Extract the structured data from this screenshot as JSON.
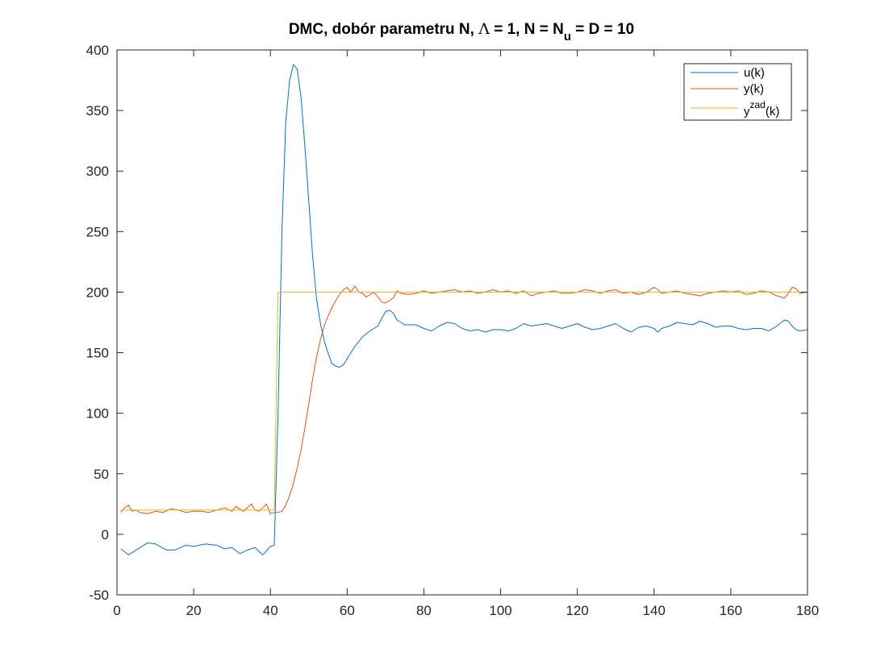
{
  "chart_data": {
    "type": "line",
    "title": {
      "prefix": "DMC, dobór parametru N, ",
      "lambda_symbol": "Λ",
      "middle": " = 1, N = N",
      "subscript": "u",
      "suffix": " = D = 10"
    },
    "xlabel": "",
    "ylabel": "",
    "xlim": [
      0,
      180
    ],
    "ylim": [
      -50,
      400
    ],
    "xticks": [
      0,
      20,
      40,
      60,
      80,
      100,
      120,
      140,
      160,
      180
    ],
    "yticks": [
      -50,
      0,
      50,
      100,
      150,
      200,
      250,
      300,
      350,
      400
    ],
    "grid": false,
    "legend_position": "top-right",
    "series": [
      {
        "name": "u(k)",
        "color": "#0072BD",
        "points": [
          [
            1,
            -12
          ],
          [
            3,
            -17
          ],
          [
            5,
            -13
          ],
          [
            8,
            -7
          ],
          [
            10,
            -8
          ],
          [
            13,
            -13
          ],
          [
            15,
            -13
          ],
          [
            18,
            -9
          ],
          [
            20,
            -10
          ],
          [
            23,
            -8
          ],
          [
            26,
            -9
          ],
          [
            28,
            -12
          ],
          [
            30,
            -11
          ],
          [
            32,
            -16
          ],
          [
            34,
            -13
          ],
          [
            36,
            -11
          ],
          [
            38,
            -17
          ],
          [
            40,
            -10
          ],
          [
            41,
            -9
          ],
          [
            42,
            100
          ],
          [
            43,
            250
          ],
          [
            44,
            340
          ],
          [
            45,
            375
          ],
          [
            46,
            388
          ],
          [
            47,
            384
          ],
          [
            48,
            360
          ],
          [
            49,
            320
          ],
          [
            50,
            275
          ],
          [
            51,
            230
          ],
          [
            52,
            195
          ],
          [
            53,
            175
          ],
          [
            54,
            160
          ],
          [
            55,
            150
          ],
          [
            56,
            141
          ],
          [
            57,
            139
          ],
          [
            58,
            138
          ],
          [
            59,
            140
          ],
          [
            60,
            145
          ],
          [
            62,
            155
          ],
          [
            64,
            163
          ],
          [
            66,
            168
          ],
          [
            68,
            172
          ],
          [
            69,
            178
          ],
          [
            70,
            184
          ],
          [
            71,
            185
          ],
          [
            72,
            183
          ],
          [
            73,
            177
          ],
          [
            75,
            173
          ],
          [
            78,
            173
          ],
          [
            80,
            170
          ],
          [
            82,
            168
          ],
          [
            84,
            172
          ],
          [
            86,
            175
          ],
          [
            88,
            174
          ],
          [
            90,
            170
          ],
          [
            92,
            168
          ],
          [
            94,
            169
          ],
          [
            96,
            167
          ],
          [
            98,
            169
          ],
          [
            100,
            169
          ],
          [
            102,
            168
          ],
          [
            104,
            170
          ],
          [
            106,
            174
          ],
          [
            108,
            172
          ],
          [
            110,
            173
          ],
          [
            112,
            174
          ],
          [
            114,
            172
          ],
          [
            116,
            170
          ],
          [
            118,
            172
          ],
          [
            120,
            174
          ],
          [
            122,
            171
          ],
          [
            124,
            169
          ],
          [
            126,
            170
          ],
          [
            128,
            172
          ],
          [
            130,
            174
          ],
          [
            132,
            170
          ],
          [
            134,
            167
          ],
          [
            136,
            171
          ],
          [
            138,
            172
          ],
          [
            140,
            170
          ],
          [
            141,
            167
          ],
          [
            142,
            170
          ],
          [
            144,
            172
          ],
          [
            146,
            175
          ],
          [
            148,
            174
          ],
          [
            150,
            173
          ],
          [
            152,
            176
          ],
          [
            154,
            174
          ],
          [
            156,
            171
          ],
          [
            158,
            172
          ],
          [
            160,
            172
          ],
          [
            162,
            170
          ],
          [
            164,
            169
          ],
          [
            166,
            170
          ],
          [
            168,
            170
          ],
          [
            170,
            168
          ],
          [
            172,
            172
          ],
          [
            174,
            177
          ],
          [
            175,
            176
          ],
          [
            176,
            172
          ],
          [
            177,
            169
          ],
          [
            178,
            168
          ],
          [
            180,
            169
          ]
        ]
      },
      {
        "name": "y(k)",
        "color": "#D95319",
        "points": [
          [
            1,
            18
          ],
          [
            2,
            22
          ],
          [
            3,
            24
          ],
          [
            4,
            19
          ],
          [
            5,
            20
          ],
          [
            6,
            18
          ],
          [
            8,
            17
          ],
          [
            10,
            19
          ],
          [
            12,
            18
          ],
          [
            14,
            21
          ],
          [
            16,
            20
          ],
          [
            18,
            18
          ],
          [
            20,
            19
          ],
          [
            22,
            19
          ],
          [
            24,
            18
          ],
          [
            26,
            20
          ],
          [
            28,
            22
          ],
          [
            30,
            19
          ],
          [
            31,
            23
          ],
          [
            32,
            21
          ],
          [
            33,
            19
          ],
          [
            34,
            22
          ],
          [
            35,
            25
          ],
          [
            36,
            20
          ],
          [
            37,
            19
          ],
          [
            38,
            22
          ],
          [
            39,
            25
          ],
          [
            40,
            17
          ],
          [
            41,
            18
          ],
          [
            42,
            18
          ],
          [
            43,
            19
          ],
          [
            44,
            24
          ],
          [
            45,
            32
          ],
          [
            46,
            42
          ],
          [
            47,
            55
          ],
          [
            48,
            70
          ],
          [
            49,
            88
          ],
          [
            50,
            108
          ],
          [
            51,
            128
          ],
          [
            52,
            146
          ],
          [
            53,
            160
          ],
          [
            54,
            172
          ],
          [
            55,
            180
          ],
          [
            56,
            187
          ],
          [
            57,
            193
          ],
          [
            58,
            198
          ],
          [
            59,
            202
          ],
          [
            60,
            204
          ],
          [
            61,
            200
          ],
          [
            62,
            205
          ],
          [
            63,
            200
          ],
          [
            64,
            199
          ],
          [
            65,
            196
          ],
          [
            66,
            198
          ],
          [
            67,
            200
          ],
          [
            68,
            196
          ],
          [
            69,
            192
          ],
          [
            70,
            191
          ],
          [
            71,
            193
          ],
          [
            72,
            195
          ],
          [
            73,
            201
          ],
          [
            74,
            199
          ],
          [
            76,
            198
          ],
          [
            78,
            199
          ],
          [
            80,
            201
          ],
          [
            82,
            199
          ],
          [
            84,
            200
          ],
          [
            86,
            201
          ],
          [
            88,
            202
          ],
          [
            90,
            200
          ],
          [
            92,
            201
          ],
          [
            94,
            199
          ],
          [
            96,
            200
          ],
          [
            98,
            202
          ],
          [
            100,
            200
          ],
          [
            102,
            201
          ],
          [
            104,
            199
          ],
          [
            106,
            201
          ],
          [
            108,
            197
          ],
          [
            110,
            199
          ],
          [
            112,
            200
          ],
          [
            114,
            201
          ],
          [
            116,
            199
          ],
          [
            118,
            199
          ],
          [
            120,
            200
          ],
          [
            122,
            202
          ],
          [
            124,
            201
          ],
          [
            126,
            199
          ],
          [
            128,
            201
          ],
          [
            130,
            202
          ],
          [
            132,
            199
          ],
          [
            134,
            200
          ],
          [
            136,
            198
          ],
          [
            138,
            200
          ],
          [
            140,
            204
          ],
          [
            141,
            202
          ],
          [
            142,
            199
          ],
          [
            144,
            200
          ],
          [
            146,
            201
          ],
          [
            148,
            199
          ],
          [
            150,
            198
          ],
          [
            152,
            197
          ],
          [
            154,
            199
          ],
          [
            156,
            200
          ],
          [
            158,
            201
          ],
          [
            160,
            200
          ],
          [
            162,
            201
          ],
          [
            164,
            198
          ],
          [
            166,
            199
          ],
          [
            168,
            201
          ],
          [
            170,
            200
          ],
          [
            172,
            197
          ],
          [
            174,
            195
          ],
          [
            175,
            199
          ],
          [
            176,
            204
          ],
          [
            177,
            203
          ],
          [
            178,
            199
          ],
          [
            180,
            200
          ]
        ]
      },
      {
        "name": "y^zad(k)",
        "color": "#EDB120",
        "points": [
          [
            1,
            20
          ],
          [
            41,
            20
          ],
          [
            42,
            200
          ],
          [
            180,
            200
          ]
        ]
      }
    ],
    "legend": [
      {
        "label": "u(k)",
        "base": "u(k)",
        "sup": "",
        "after": ""
      },
      {
        "label": "y(k)",
        "base": "y(k)",
        "sup": "",
        "after": ""
      },
      {
        "label": "y^zad(k)",
        "base": "y",
        "sup": "zad",
        "after": "(k)"
      }
    ]
  }
}
